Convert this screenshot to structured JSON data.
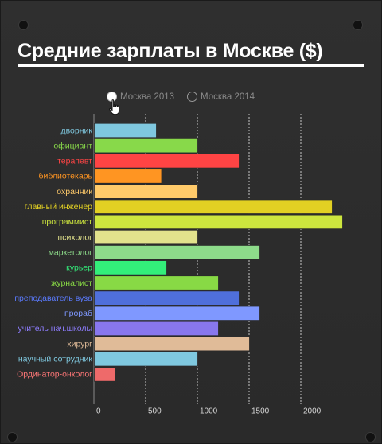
{
  "title": "Средние зарплаты в Москве ($)",
  "toggle": {
    "options": [
      "Москва 2013",
      "Москва 2014"
    ],
    "selected": "Москва 2013"
  },
  "icons": {
    "cursor": "hand-pointer-icon"
  },
  "chart_data": {
    "type": "bar",
    "orientation": "horizontal",
    "grid": true,
    "xlim": [
      0,
      2400
    ],
    "xticks": [
      0,
      500,
      1000,
      1500,
      2000
    ],
    "categories": [
      "дворник",
      "официант",
      "терапевт",
      "библиотекарь",
      "охранник",
      "главный инженер",
      "программист",
      "психолог",
      "маркетолог",
      "курьер",
      "журналист",
      "преподаватель вуза",
      "прораб",
      "учитель нач.школы",
      "хирург",
      "научный сотрудник",
      "Ординатор-онколог"
    ],
    "values": [
      600,
      1000,
      1400,
      650,
      1000,
      2300,
      2400,
      1000,
      1600,
      700,
      1200,
      1400,
      1600,
      1200,
      1500,
      1000,
      200
    ],
    "colors": [
      "#7fc8df",
      "#88d94a",
      "#ff4444",
      "#ff9522",
      "#ffca6a",
      "#e2d023",
      "#cde63e",
      "#e2e28c",
      "#8ddb8a",
      "#33ee7a",
      "#88d945",
      "#4f6fdb",
      "#7f98ff",
      "#8877ee",
      "#e0bb98",
      "#7fc8df",
      "#ee6a6a"
    ],
    "label_colors": [
      "#7fc8df",
      "#88d94a",
      "#ff4444",
      "#ff9522",
      "#ffca6a",
      "#e2d023",
      "#cde63e",
      "#e2e28c",
      "#8ddb8a",
      "#33ee7a",
      "#88d945",
      "#5b7bff",
      "#7f98ff",
      "#8e7dff",
      "#e0bb98",
      "#7fc8df",
      "#ff7777"
    ]
  }
}
